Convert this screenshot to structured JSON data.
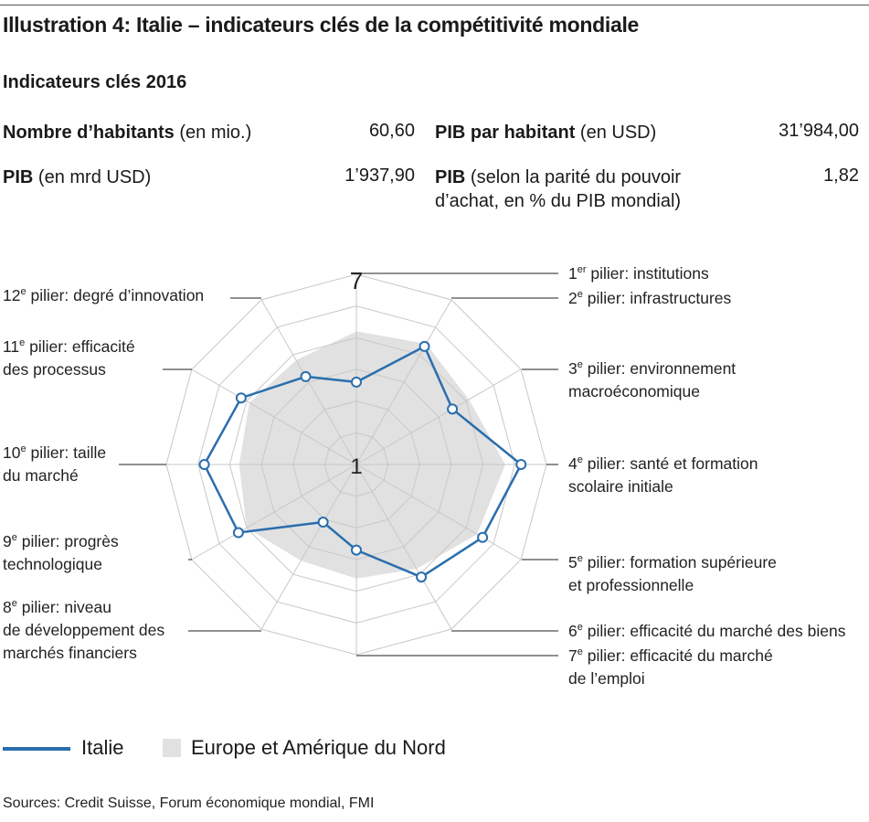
{
  "title": "Illustration 4: Italie – indicateurs clés de la compétitivité mondiale",
  "subtitle": "Indicateurs clés 2016",
  "indicators": {
    "pop_label_bold": "Nombre d’habitants",
    "pop_label_unit": "(en mio.)",
    "pop_value": "60,60",
    "gdp_label_bold": "PIB",
    "gdp_label_unit": "(en mrd USD)",
    "gdp_value": "1’937,90",
    "gdppc_label_bold": "PIB par habitant",
    "gdppc_label_unit": "(en USD)",
    "gdppc_value": "31’984,00",
    "ppp_label_bold": "PIB",
    "ppp_label_unit_1": "(selon la parité du pouvoir",
    "ppp_label_unit_2": "d’achat, en % du PIB mondial)",
    "ppp_value": "1,82"
  },
  "pillars": [
    {
      "num": "1",
      "sup": "er",
      "line1": " pilier: institutions",
      "line2": ""
    },
    {
      "num": "2",
      "sup": "e",
      "line1": " pilier: infrastructures",
      "line2": ""
    },
    {
      "num": "3",
      "sup": "e",
      "line1": " pilier: environnement",
      "line2": "macroéconomique"
    },
    {
      "num": "4",
      "sup": "e",
      "line1": " pilier: santé et formation",
      "line2": "scolaire initiale"
    },
    {
      "num": "5",
      "sup": "e",
      "line1": " pilier: formation supérieure",
      "line2": "et professionnelle"
    },
    {
      "num": "6",
      "sup": "e",
      "line1": " pilier: efficacité du marché des biens",
      "line2": ""
    },
    {
      "num": "7",
      "sup": "e",
      "line1": " pilier: efficacité du marché",
      "line2": "de l’emploi"
    },
    {
      "num": "8",
      "sup": "e",
      "line1": " pilier: niveau",
      "line2": "de développement des",
      "line3": "marchés financiers"
    },
    {
      "num": "9",
      "sup": "e",
      "line1": " pilier: progrès",
      "line2": "technologique"
    },
    {
      "num": "10",
      "sup": "e",
      "line1": " pilier: taille",
      "line2": "du marché"
    },
    {
      "num": "11",
      "sup": "e",
      "line1": " pilier: efficacité",
      "line2": "des processus"
    },
    {
      "num": "12",
      "sup": "e",
      "line1": " pilier: degré d’innovation",
      "line2": ""
    }
  ],
  "chart_data": {
    "type": "radar",
    "axis_min_label": "1",
    "axis_max_label": "7",
    "rmin": 1,
    "rmax": 7,
    "levels": 6,
    "series": [
      {
        "name": "Italie",
        "color": "#2a6ead",
        "values": [
          3.6,
          5.3,
          4.5,
          6.2,
          5.6,
          5.1,
          3.7,
          3.1,
          5.3,
          5.8,
          5.2,
          4.2
        ]
      },
      {
        "name": "Europe et Amérique du Nord",
        "color": "#e1e1e1",
        "values": [
          5.2,
          5.4,
          5.1,
          5.7,
          5.4,
          4.8,
          4.6,
          4.5,
          5.0,
          4.7,
          4.9,
          4.8
        ]
      }
    ]
  },
  "legend": {
    "italy": "Italie",
    "europe": "Europe et Amérique du Nord"
  },
  "source": "Sources: Credit Suisse, Forum économique mondial, FMI"
}
